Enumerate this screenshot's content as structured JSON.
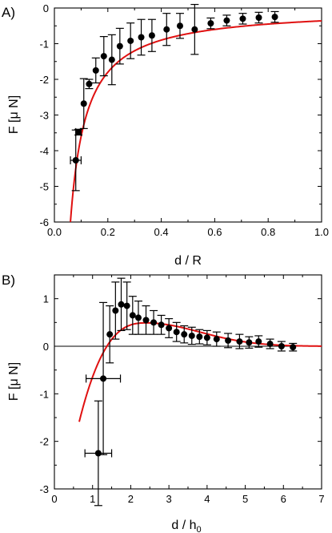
{
  "chart_data": [
    {
      "type": "scatter",
      "panel_label": "A)",
      "xlabel": "d / R",
      "ylabel": "F [μ N]",
      "xlim": [
        0,
        1
      ],
      "ylim": [
        -6,
        0
      ],
      "xticks": [
        "0.0",
        "0.2",
        "0.4",
        "0.6",
        "0.8",
        "1.0"
      ],
      "yticks": [
        "0",
        "-1",
        "-2",
        "-3",
        "-4",
        "-5",
        "-6"
      ],
      "fit_color": "#e01010",
      "fit_type": "line",
      "series": [
        {
          "type": "scatter_with_errorbars",
          "points": [
            {
              "x": 0.08,
              "y": -4.27,
              "yerr": 0.85,
              "xerr": 0.02
            },
            {
              "x": 0.09,
              "y": -3.48,
              "yerr": 0.08,
              "xerr": 0.01
            },
            {
              "x": 0.11,
              "y": -2.68,
              "yerr": 0.7
            },
            {
              "x": 0.13,
              "y": -2.13,
              "yerr": 0.13
            },
            {
              "x": 0.155,
              "y": -1.75,
              "yerr": 0.35
            },
            {
              "x": 0.185,
              "y": -1.35,
              "yerr": 0.55
            },
            {
              "x": 0.215,
              "y": -1.45,
              "yerr": 0.7
            },
            {
              "x": 0.245,
              "y": -1.07,
              "yerr": 0.5
            },
            {
              "x": 0.285,
              "y": -0.92,
              "yerr": 0.5
            },
            {
              "x": 0.325,
              "y": -0.82,
              "yerr": 0.5
            },
            {
              "x": 0.365,
              "y": -0.77,
              "yerr": 0.45
            },
            {
              "x": 0.42,
              "y": -0.6,
              "yerr": 0.45
            },
            {
              "x": 0.47,
              "y": -0.5,
              "yerr": 0.35
            },
            {
              "x": 0.525,
              "y": -0.6,
              "yerr": 0.7
            },
            {
              "x": 0.585,
              "y": -0.43,
              "yerr": 0.15
            },
            {
              "x": 0.645,
              "y": -0.35,
              "yerr": 0.15
            },
            {
              "x": 0.705,
              "y": -0.3,
              "yerr": 0.15
            },
            {
              "x": 0.765,
              "y": -0.27,
              "yerr": 0.15
            },
            {
              "x": 0.825,
              "y": -0.25,
              "yerr": 0.15
            }
          ]
        },
        {
          "type": "fit_curve",
          "formula_kind": "reciprocal",
          "A": -0.36,
          "x_start": 0.06,
          "x_end": 1.0
        }
      ]
    },
    {
      "type": "scatter",
      "panel_label": "B)",
      "xlabel": "d / h₀",
      "ylabel": "F [μ N]",
      "xlim": [
        0,
        7
      ],
      "ylim": [
        -3,
        1.5
      ],
      "xticks": [
        "0",
        "1",
        "2",
        "3",
        "4",
        "5",
        "6",
        "7"
      ],
      "yticks": [
        "1",
        "0",
        "-1",
        "-2",
        "-3"
      ],
      "fit_color": "#e01010",
      "series": [
        {
          "type": "scatter_with_errorbars",
          "points": [
            {
              "x": 1.15,
              "y": -2.25,
              "yerr": 1.1,
              "xerr": 0.35
            },
            {
              "x": 1.28,
              "y": -0.68,
              "yerr": 1.6,
              "xerr": 0.45
            },
            {
              "x": 1.45,
              "y": 0.25,
              "yerr": 0.6
            },
            {
              "x": 1.6,
              "y": 0.75,
              "yerr": 0.6
            },
            {
              "x": 1.75,
              "y": 0.88,
              "yerr": 0.55
            },
            {
              "x": 1.9,
              "y": 0.85,
              "yerr": 0.5
            },
            {
              "x": 2.05,
              "y": 0.65,
              "yerr": 0.4
            },
            {
              "x": 2.2,
              "y": 0.6,
              "yerr": 0.35
            },
            {
              "x": 2.4,
              "y": 0.55,
              "yerr": 0.3
            },
            {
              "x": 2.6,
              "y": 0.5,
              "yerr": 0.25
            },
            {
              "x": 2.8,
              "y": 0.45,
              "yerr": 0.2
            },
            {
              "x": 3.0,
              "y": 0.38,
              "yerr": 0.2
            },
            {
              "x": 3.2,
              "y": 0.3,
              "yerr": 0.2
            },
            {
              "x": 3.4,
              "y": 0.25,
              "yerr": 0.18
            },
            {
              "x": 3.6,
              "y": 0.22,
              "yerr": 0.18
            },
            {
              "x": 3.8,
              "y": 0.2,
              "yerr": 0.15
            },
            {
              "x": 4.0,
              "y": 0.18,
              "yerr": 0.15
            },
            {
              "x": 4.25,
              "y": 0.15,
              "yerr": 0.15
            },
            {
              "x": 4.55,
              "y": 0.12,
              "yerr": 0.15
            },
            {
              "x": 4.85,
              "y": 0.1,
              "yerr": 0.15
            },
            {
              "x": 5.1,
              "y": 0.08,
              "yerr": 0.12
            },
            {
              "x": 5.35,
              "y": 0.1,
              "yerr": 0.12
            },
            {
              "x": 5.65,
              "y": 0.05,
              "yerr": 0.1
            },
            {
              "x": 5.95,
              "y": 0.0,
              "yerr": 0.1
            },
            {
              "x": 6.25,
              "y": -0.02,
              "yerr": 0.08
            }
          ]
        },
        {
          "type": "fit_curve",
          "formula_kind": "damped",
          "A": 2.34,
          "k": 0.43,
          "x_start": 0.65,
          "x_end": 7.0
        }
      ]
    }
  ]
}
